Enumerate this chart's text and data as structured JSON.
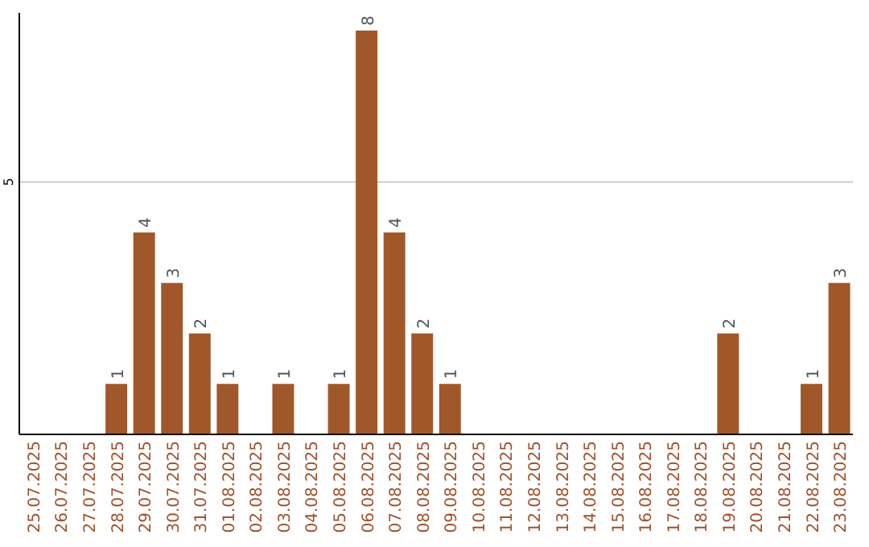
{
  "chart_data": {
    "type": "bar",
    "categories": [
      "25.07.2025",
      "26.07.2025",
      "27.07.2025",
      "28.07.2025",
      "29.07.2025",
      "30.07.2025",
      "31.07.2025",
      "01.08.2025",
      "02.08.2025",
      "03.08.2025",
      "04.08.2025",
      "05.08.2025",
      "06.08.2025",
      "07.08.2025",
      "08.08.2025",
      "09.08.2025",
      "10.08.2025",
      "11.08.2025",
      "12.08.2025",
      "13.08.2025",
      "14.08.2025",
      "15.08.2025",
      "16.08.2025",
      "17.08.2025",
      "18.08.2025",
      "19.08.2025",
      "20.08.2025",
      "21.08.2025",
      "22.08.2025",
      "23.08.2025"
    ],
    "values": [
      0,
      0,
      0,
      1,
      4,
      3,
      2,
      1,
      0,
      1,
      0,
      1,
      8,
      4,
      2,
      1,
      0,
      0,
      0,
      0,
      0,
      0,
      0,
      0,
      0,
      2,
      0,
      0,
      1,
      3
    ],
    "value_labels": [
      null,
      null,
      null,
      "1",
      "4",
      "3",
      "2",
      "1",
      null,
      "1",
      null,
      "1",
      "8",
      "4",
      "2",
      "1",
      null,
      null,
      null,
      null,
      null,
      null,
      null,
      null,
      null,
      "2",
      null,
      null,
      "1",
      "3"
    ],
    "color": "#a0582a",
    "ylim": [
      0,
      8.35
    ],
    "yticks": [
      5
    ],
    "grid": "y"
  }
}
